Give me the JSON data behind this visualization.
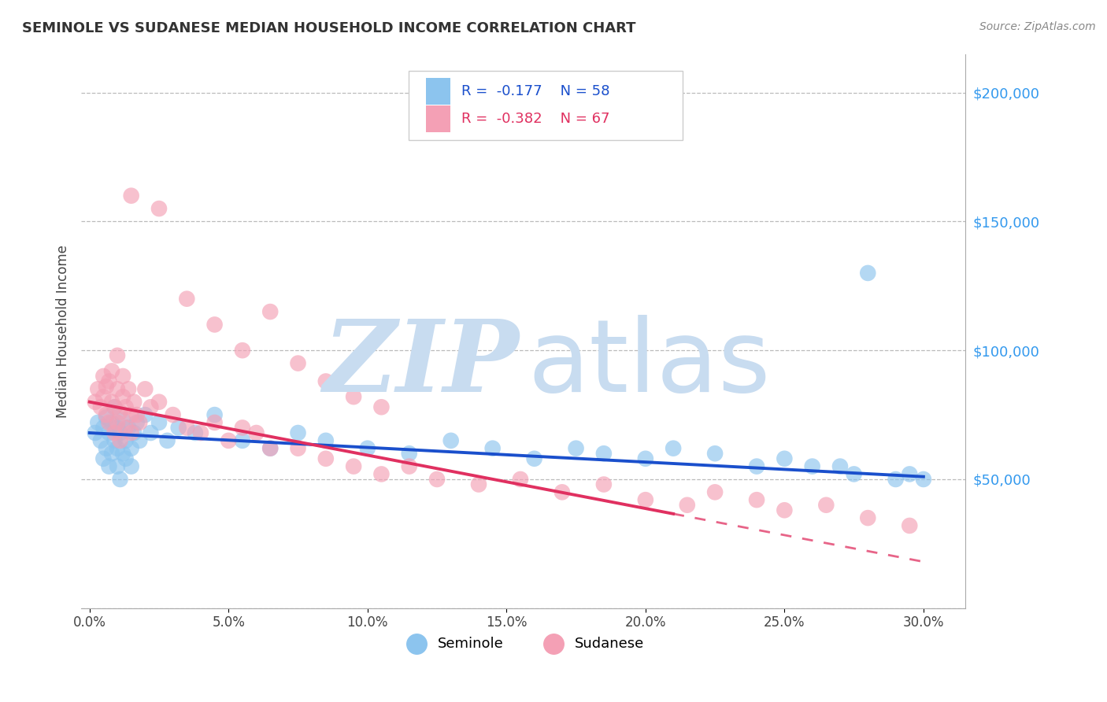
{
  "title": "SEMINOLE VS SUDANESE MEDIAN HOUSEHOLD INCOME CORRELATION CHART",
  "source": "Source: ZipAtlas.com",
  "xlabel_ticks": [
    "0.0%",
    "5.0%",
    "10.0%",
    "15.0%",
    "20.0%",
    "25.0%",
    "30.0%"
  ],
  "xlabel_vals": [
    0.0,
    5.0,
    10.0,
    15.0,
    20.0,
    25.0,
    30.0
  ],
  "ylabel": "Median Household Income",
  "ylabel_ticks": [
    0,
    50000,
    100000,
    150000,
    200000
  ],
  "ylabel_labels": [
    "",
    "$50,000",
    "$100,000",
    "$150,000",
    "$200,000"
  ],
  "xlim": [
    -0.3,
    31.5
  ],
  "ylim": [
    5000,
    215000
  ],
  "blue_color": "#8CC4EE",
  "pink_color": "#F4A0B5",
  "blue_line_color": "#1A4FCC",
  "pink_line_color": "#E03060",
  "watermark_zip_color": "#C8DCF0",
  "watermark_atlas_color": "#C8DCF0",
  "seminole_label": "Seminole",
  "sudanese_label": "Sudanese",
  "seminole_x": [
    0.2,
    0.3,
    0.4,
    0.5,
    0.5,
    0.6,
    0.6,
    0.7,
    0.7,
    0.8,
    0.8,
    0.9,
    0.9,
    1.0,
    1.0,
    1.0,
    1.1,
    1.1,
    1.2,
    1.2,
    1.3,
    1.3,
    1.4,
    1.5,
    1.5,
    1.6,
    1.7,
    1.8,
    2.0,
    2.2,
    2.5,
    2.8,
    3.2,
    3.8,
    4.5,
    5.5,
    6.5,
    7.5,
    8.5,
    10.0,
    11.5,
    13.0,
    14.5,
    16.0,
    17.5,
    18.5,
    20.0,
    21.0,
    22.5,
    24.0,
    25.0,
    26.0,
    27.5,
    28.0,
    29.0,
    29.5,
    27.0,
    30.0
  ],
  "seminole_y": [
    68000,
    72000,
    65000,
    70000,
    58000,
    62000,
    74000,
    68000,
    55000,
    72000,
    60000,
    65000,
    78000,
    62000,
    70000,
    55000,
    68000,
    50000,
    73000,
    60000,
    65000,
    58000,
    70000,
    62000,
    55000,
    68000,
    72000,
    65000,
    75000,
    68000,
    72000,
    65000,
    70000,
    68000,
    75000,
    65000,
    62000,
    68000,
    65000,
    62000,
    60000,
    65000,
    62000,
    58000,
    62000,
    60000,
    58000,
    62000,
    60000,
    55000,
    58000,
    55000,
    52000,
    130000,
    50000,
    52000,
    55000,
    50000
  ],
  "sudanese_x": [
    0.2,
    0.3,
    0.4,
    0.5,
    0.5,
    0.6,
    0.6,
    0.7,
    0.7,
    0.8,
    0.8,
    0.9,
    0.9,
    1.0,
    1.0,
    1.0,
    1.1,
    1.1,
    1.2,
    1.2,
    1.3,
    1.3,
    1.4,
    1.5,
    1.5,
    1.6,
    1.7,
    1.8,
    2.0,
    2.2,
    2.5,
    3.0,
    3.5,
    4.0,
    4.5,
    5.0,
    5.5,
    6.0,
    6.5,
    7.5,
    8.5,
    9.5,
    10.5,
    11.5,
    12.5,
    14.0,
    15.5,
    17.0,
    18.5,
    20.0,
    21.5,
    22.5,
    24.0,
    25.0,
    26.5,
    28.0,
    29.5,
    1.5,
    2.5,
    3.5,
    4.5,
    5.5,
    6.5,
    7.5,
    8.5,
    9.5,
    10.5
  ],
  "sudanese_y": [
    80000,
    85000,
    78000,
    82000,
    90000,
    86000,
    75000,
    88000,
    72000,
    80000,
    92000,
    78000,
    68000,
    85000,
    72000,
    98000,
    76000,
    65000,
    82000,
    90000,
    70000,
    78000,
    85000,
    75000,
    68000,
    80000,
    75000,
    72000,
    85000,
    78000,
    80000,
    75000,
    70000,
    68000,
    72000,
    65000,
    70000,
    68000,
    62000,
    62000,
    58000,
    55000,
    52000,
    55000,
    50000,
    48000,
    50000,
    45000,
    48000,
    42000,
    40000,
    45000,
    42000,
    38000,
    40000,
    35000,
    32000,
    160000,
    155000,
    120000,
    110000,
    100000,
    115000,
    95000,
    88000,
    82000,
    78000
  ],
  "blue_line_x0": 0,
  "blue_line_y0": 68000,
  "blue_line_x1": 30,
  "blue_line_y1": 51000,
  "pink_line_x0": 0,
  "pink_line_y0": 80000,
  "pink_line_x1": 30,
  "pink_line_y1": 18000,
  "pink_solid_end_x": 21,
  "pink_dash_end_x": 30
}
